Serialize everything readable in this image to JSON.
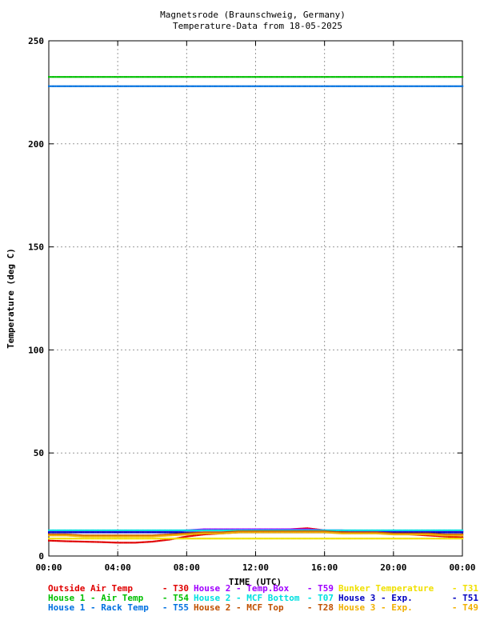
{
  "chart_data": {
    "type": "scatter",
    "title": "Magnetsrode (Braunschweig, Germany)",
    "subtitle": "Temperature-Data from 18-05-2025",
    "xlabel": "TIME (UTC)",
    "ylabel": "Temperature (deg C)",
    "xlim": [
      0,
      24
    ],
    "ylim": [
      0,
      250
    ],
    "xticks": [
      "00:00",
      "04:00",
      "08:00",
      "12:00",
      "16:00",
      "20:00",
      "00:00"
    ],
    "yticks": [
      0,
      50,
      100,
      150,
      200,
      250
    ],
    "grid": true,
    "legend_position": "bottom",
    "series": [
      {
        "name": "Outside Air Temp",
        "code": "T30",
        "color": "#e00000",
        "x": [
          0,
          1,
          2,
          3,
          4,
          5,
          6,
          7,
          8,
          9,
          10,
          11,
          12,
          13,
          14,
          15,
          16,
          17,
          18,
          19,
          20,
          21,
          22,
          23,
          24
        ],
        "y": [
          7.5,
          7.2,
          7.0,
          6.8,
          6.5,
          6.5,
          7.0,
          8.0,
          9.5,
          10.5,
          11.0,
          11.5,
          12.0,
          12.5,
          13.0,
          13.5,
          12.5,
          12.0,
          11.5,
          11.5,
          11.0,
          10.5,
          10.0,
          9.5,
          9.0
        ]
      },
      {
        "name": "House 2 - Temp.Box",
        "code": "T59",
        "color": "#a000ff",
        "x": [
          0,
          1,
          2,
          3,
          4,
          5,
          6,
          7,
          8,
          9,
          10,
          11,
          12,
          13,
          14,
          15,
          16,
          17,
          18,
          19,
          20,
          21,
          22,
          23,
          24
        ],
        "y": [
          12.0,
          12.0,
          12.0,
          12.0,
          12.0,
          12.0,
          12.0,
          12.0,
          12.5,
          13.0,
          13.0,
          13.0,
          13.0,
          13.0,
          13.0,
          13.0,
          12.5,
          12.5,
          12.0,
          12.0,
          12.0,
          12.0,
          12.0,
          12.0,
          12.0
        ]
      },
      {
        "name": "Bunker Temperature",
        "code": "T31",
        "color": "#f0e000",
        "x": [
          0,
          1,
          2,
          3,
          4,
          5,
          6,
          7,
          8,
          9,
          10,
          11,
          12,
          13,
          14,
          15,
          16,
          17,
          18,
          19,
          20,
          21,
          22,
          23,
          24
        ],
        "y": [
          8.5,
          8.5,
          8.5,
          8.5,
          8.5,
          8.5,
          8.5,
          8.5,
          8.5,
          8.5,
          8.5,
          8.5,
          8.5,
          8.5,
          8.5,
          8.5,
          8.5,
          8.5,
          8.5,
          8.5,
          8.5,
          8.5,
          8.5,
          8.5,
          8.5
        ]
      },
      {
        "name": "House 1 - Air  Temp",
        "code": "T54",
        "color": "#00c000",
        "x": [
          0,
          1,
          2,
          3,
          4,
          5,
          6,
          7,
          8,
          9,
          10,
          11,
          12,
          13,
          14,
          15,
          16,
          17,
          18,
          19,
          20,
          21,
          22,
          23,
          24
        ],
        "y": [
          232.5,
          232.5,
          232.5,
          232.5,
          232.5,
          232.5,
          232.5,
          232.5,
          232.5,
          232.5,
          232.5,
          232.5,
          232.5,
          232.5,
          232.5,
          232.5,
          232.5,
          232.5,
          232.5,
          232.5,
          232.5,
          232.5,
          232.5,
          232.5,
          232.5
        ]
      },
      {
        "name": "House 2 - MCF Bottom",
        "code": "T07",
        "color": "#00e0e0",
        "x": [
          0,
          1,
          2,
          3,
          4,
          5,
          6,
          7,
          8,
          9,
          10,
          11,
          12,
          13,
          14,
          15,
          16,
          17,
          18,
          19,
          20,
          21,
          22,
          23,
          24
        ],
        "y": [
          12.5,
          12.5,
          12.5,
          12.5,
          12.5,
          12.5,
          12.5,
          12.5,
          12.5,
          12.5,
          12.5,
          12.5,
          12.5,
          12.5,
          12.5,
          12.5,
          12.5,
          12.5,
          12.5,
          12.5,
          12.5,
          12.5,
          12.5,
          12.5,
          12.5
        ]
      },
      {
        "name": "House 3 - Exp.",
        "code": "T51",
        "color": "#0000c0",
        "x": [
          0,
          1,
          2,
          3,
          4,
          5,
          6,
          7,
          8,
          9,
          10,
          11,
          12,
          13,
          14,
          15,
          16,
          17,
          18,
          19,
          20,
          21,
          22,
          23,
          24
        ],
        "y": [
          11.5,
          11.5,
          11.5,
          11.5,
          11.5,
          11.5,
          11.5,
          11.5,
          11.5,
          11.5,
          11.5,
          11.5,
          11.5,
          11.5,
          11.5,
          11.5,
          11.5,
          11.5,
          11.5,
          11.5,
          11.5,
          11.5,
          11.5,
          11.5,
          11.5
        ]
      },
      {
        "name": "House 1 - Rack Temp",
        "code": "T55",
        "color": "#0070e0",
        "x": [
          0,
          1,
          2,
          3,
          4,
          5,
          6,
          7,
          8,
          9,
          10,
          11,
          12,
          13,
          14,
          15,
          16,
          17,
          18,
          19,
          20,
          21,
          22,
          23,
          24
        ],
        "y": [
          228.0,
          228.0,
          228.0,
          228.0,
          228.0,
          228.0,
          228.0,
          228.0,
          228.0,
          228.0,
          228.0,
          228.0,
          228.0,
          228.0,
          228.0,
          228.0,
          228.0,
          228.0,
          228.0,
          228.0,
          228.0,
          228.0,
          228.0,
          228.0,
          228.0
        ]
      },
      {
        "name": "House 2 - MCF Top",
        "code": "T28",
        "color": "#c05000",
        "x": [
          0,
          1,
          2,
          3,
          4,
          5,
          6,
          7,
          8,
          9,
          10,
          11,
          12,
          13,
          14,
          15,
          16,
          17,
          18,
          19,
          20,
          21,
          22,
          23,
          24
        ],
        "y": [
          10.5,
          10.5,
          10.0,
          10.0,
          10.0,
          10.0,
          10.0,
          10.5,
          11.0,
          11.5,
          11.5,
          12.0,
          12.0,
          12.0,
          12.0,
          12.0,
          12.0,
          11.5,
          11.5,
          11.5,
          11.0,
          11.0,
          11.0,
          10.5,
          10.5
        ]
      },
      {
        "name": "House 3 - Exp.",
        "code": "T49",
        "color": "#f0b000",
        "x": [
          0,
          1,
          2,
          3,
          4,
          5,
          6,
          7,
          8,
          9,
          10,
          11,
          12,
          13,
          14,
          15,
          16,
          17,
          18,
          19,
          20,
          21,
          22,
          23,
          24
        ],
        "y": [
          10.0,
          10.0,
          9.5,
          9.5,
          9.5,
          9.5,
          9.5,
          10.0,
          10.5,
          11.0,
          11.0,
          11.5,
          11.5,
          11.5,
          11.5,
          11.5,
          11.5,
          11.0,
          11.0,
          11.0,
          10.5,
          10.5,
          10.5,
          10.0,
          10.0
        ]
      }
    ]
  }
}
